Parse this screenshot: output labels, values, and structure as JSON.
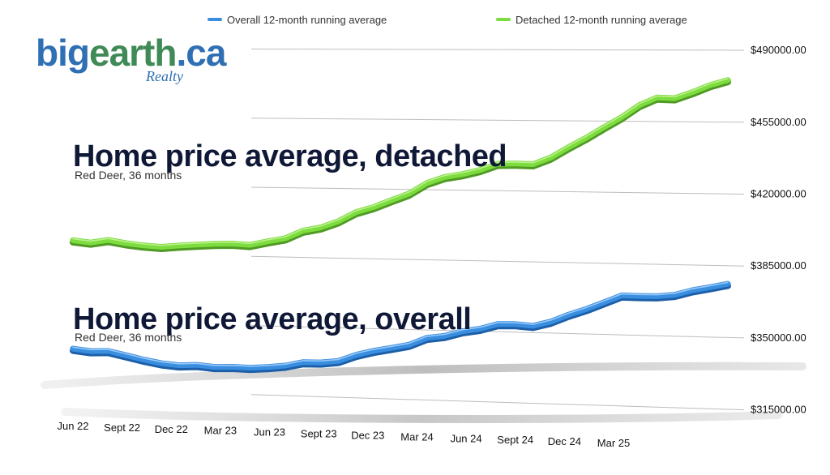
{
  "logo": {
    "part1": "big",
    "part2": "earth",
    "part3": ".ca",
    "sub": "Realty"
  },
  "colors": {
    "overall": "#3a8ee0",
    "detached": "#7ddc3e"
  },
  "chart_data": {
    "type": "line",
    "legend": [
      {
        "label": "Overall 12-month running average",
        "color": "#3a8ee0"
      },
      {
        "label": "Detached 12-month running average",
        "color": "#7ddc3e"
      }
    ],
    "legend_position": "top",
    "x_tick_labels": [
      "Jun 22",
      "Sept 22",
      "Dec 22",
      "Mar 23",
      "Jun 23",
      "Sept 23",
      "Dec 23",
      "Mar 24",
      "Jun 24",
      "Sept 24",
      "Dec 24",
      "Mar 25"
    ],
    "y_tick_labels": [
      "$490000.00",
      "$455000.00",
      "$420000.00",
      "$385000.00",
      "$350000.00",
      "$315000.00"
    ],
    "ylim": [
      315000,
      490000
    ],
    "grid": true,
    "annotations": [
      {
        "title": "Home price average, detached",
        "subtitle": "Red Deer, 36 months"
      },
      {
        "title": "Home price average, overall",
        "subtitle": "Red Deer, 36 months"
      }
    ],
    "series": [
      {
        "name": "Detached 12-month running average",
        "values": [
          391500,
          390500,
          392000,
          390500,
          389500,
          389000,
          389800,
          390500,
          391000,
          391300,
          390800,
          392800,
          394500,
          398500,
          400300,
          403600,
          408300,
          411000,
          414600,
          418000,
          423400,
          426500,
          428000,
          430200,
          433400,
          433600,
          433400,
          436800,
          442000,
          446700,
          452000,
          457000,
          463000,
          466800,
          466500,
          469500,
          473000,
          475500
        ]
      },
      {
        "name": "Overall 12-month running average",
        "values": [
          335800,
          334800,
          335100,
          333200,
          331200,
          329600,
          328800,
          329300,
          328500,
          328800,
          328600,
          329200,
          330200,
          332200,
          332300,
          333300,
          336600,
          338900,
          340600,
          342400,
          346100,
          347300,
          349800,
          351300,
          353800,
          354000,
          353400,
          355700,
          359300,
          362300,
          365800,
          369400,
          369300,
          369400,
          370300,
          372700,
          374400,
          376200
        ]
      }
    ]
  }
}
